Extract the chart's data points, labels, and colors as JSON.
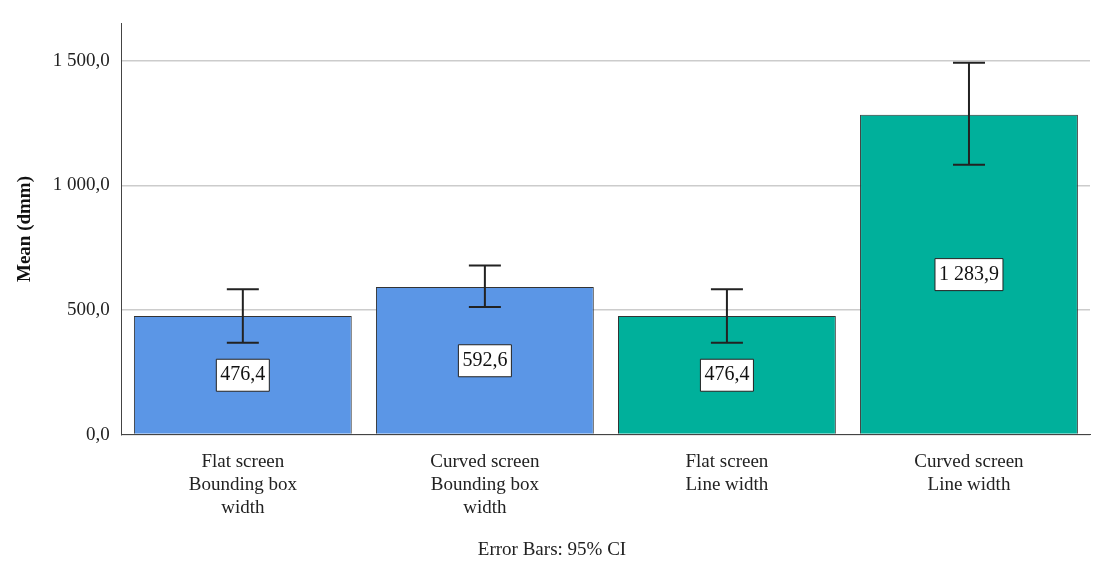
{
  "chart_data": {
    "type": "bar",
    "ylabel": "Mean (dmm)",
    "categories": [
      "Flat screen\nBounding box\nwidth",
      "Curved screen\nBounding box\nwidth",
      "Flat screen\nLine width",
      "Curved screen\nLine width"
    ],
    "values": [
      476.4,
      592.6,
      476.4,
      1283.9
    ],
    "colors": [
      "#5b96e6",
      "#5b96e6",
      "#00b09b",
      "#00b09b"
    ],
    "errors": [
      [
        369,
        583
      ],
      [
        512,
        679
      ],
      [
        369,
        583
      ],
      [
        1083,
        1492
      ]
    ],
    "value_labels": [
      "476,4",
      "592,6",
      "476,4",
      "1 283,9"
    ],
    "ylim": [
      0,
      1650
    ],
    "yticks": [
      {
        "value": 0,
        "label": "0,0"
      },
      {
        "value": 500,
        "label": "500,0"
      },
      {
        "value": 1000,
        "label": "1 000,0"
      },
      {
        "value": 1500,
        "label": "1 500,0"
      }
    ],
    "grid": "y",
    "annotations": [
      "Error Bars: 95% CI"
    ]
  }
}
